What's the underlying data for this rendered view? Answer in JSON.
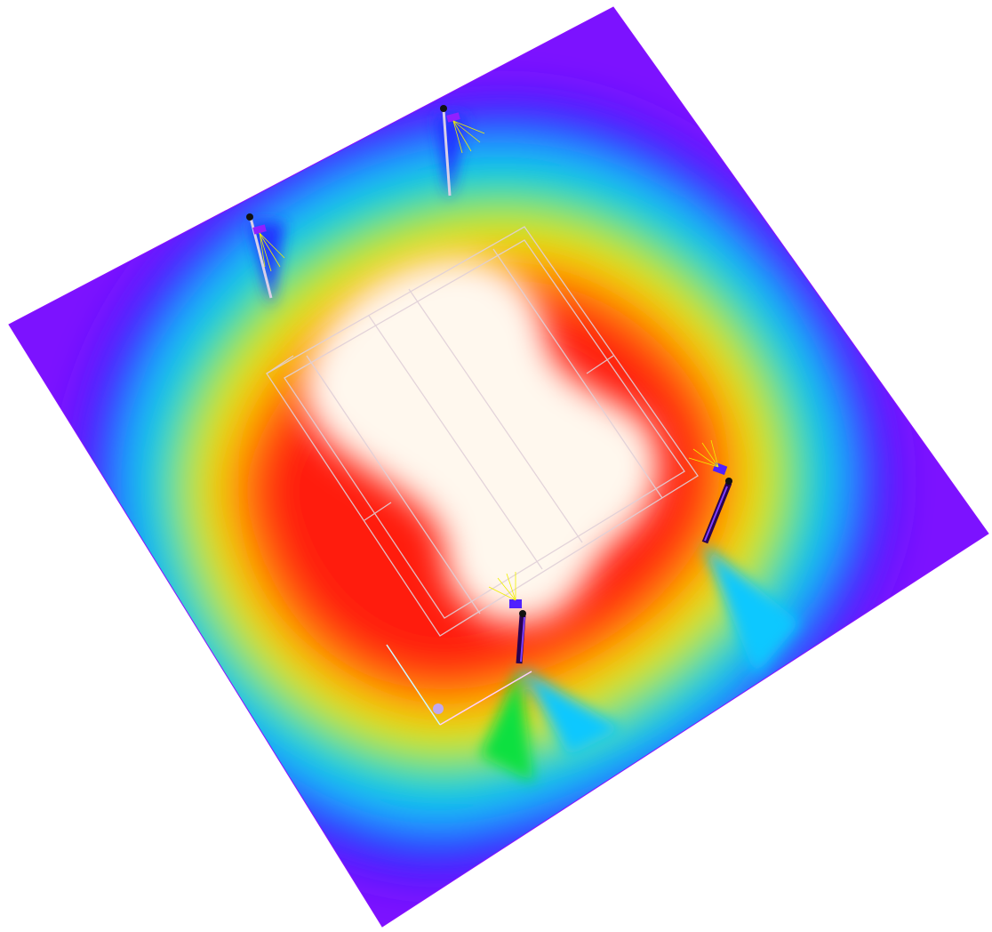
{
  "scene": {
    "kind": "lighting-illuminance-false-color",
    "color_scale": [
      "#7a00ff",
      "#2030ff",
      "#00e0ff",
      "#00e020",
      "#ffff00",
      "#ff8c00",
      "#ff1a00",
      "#fff8ee"
    ],
    "plane_color_edge": "#8a10ff",
    "court_line_color": "#d8c8d0",
    "pole_color": "#2a0050",
    "fixture_colors": [
      "#7a20ff",
      "#ff00ff",
      "#ffd040"
    ],
    "beam_color": "#f0f000",
    "axis_colors": [
      "#40e0ff",
      "#ff90ff",
      "#b0a0ff"
    ],
    "poles": [
      {
        "name": "pole-top-left"
      },
      {
        "name": "pole-top-center"
      },
      {
        "name": "pole-right"
      },
      {
        "name": "pole-bottom-center"
      }
    ]
  }
}
